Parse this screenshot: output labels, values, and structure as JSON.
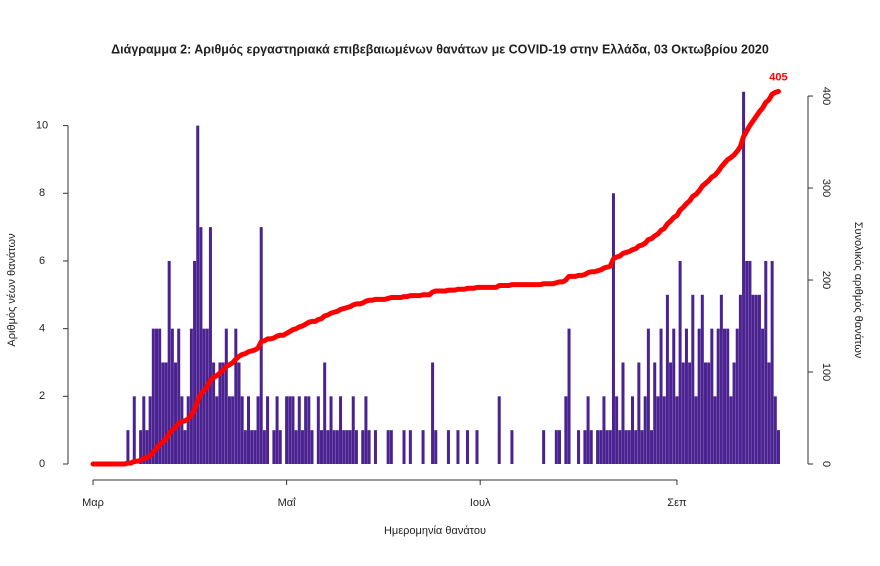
{
  "chart_data": {
    "type": "bar",
    "title": "Διάγραμμα 2: Αριθμός εργαστηριακά επιβεβαιωμένων θανάτων με COVID-19 στην Ελλάδα, 03 Οκτωβρίου 2020",
    "x_label": "Ημερομηνία θανάτου",
    "y_label": "Αριθμός νέων θανάτων",
    "y2_label": "Συνολικός αριθμός θανάτων",
    "x": [
      0,
      1,
      2,
      3,
      4,
      5,
      6,
      7,
      8,
      9,
      10,
      11,
      12,
      13,
      14,
      15,
      16,
      17,
      18,
      19,
      20,
      21,
      22,
      23,
      24,
      25,
      26,
      27,
      28,
      29,
      30,
      31,
      32,
      33,
      34,
      35,
      36,
      37,
      38,
      39,
      40,
      41,
      42,
      43,
      44,
      45,
      46,
      47,
      48,
      49,
      50,
      51,
      52,
      53,
      54,
      55,
      56,
      57,
      58,
      59,
      60,
      61,
      62,
      63,
      64,
      65,
      66,
      67,
      68,
      69,
      70,
      71,
      72,
      73,
      74,
      75,
      76,
      77,
      78,
      79,
      80,
      81,
      82,
      83,
      84,
      85,
      86,
      87,
      88,
      89,
      90,
      91,
      92,
      93,
      94,
      95,
      96,
      97,
      98,
      99,
      100,
      101,
      102,
      103,
      104,
      105,
      106,
      107,
      108,
      109,
      110,
      111,
      112,
      113,
      114,
      115,
      116,
      117,
      118,
      119,
      120,
      121,
      122,
      123,
      124,
      125,
      126,
      127,
      128,
      129,
      130,
      131,
      132,
      133,
      134,
      135,
      136,
      137,
      138,
      139,
      140,
      141,
      142,
      143,
      144,
      145,
      146,
      147,
      148,
      149,
      150,
      151,
      152,
      153,
      154,
      155,
      156,
      157,
      158,
      159,
      160,
      161,
      162,
      163,
      164,
      165,
      166,
      167,
      168,
      169,
      170,
      171,
      172,
      173,
      174,
      175,
      176,
      177,
      178,
      179,
      180,
      181,
      182,
      183,
      184,
      185,
      186,
      187,
      188,
      189,
      190,
      191,
      192,
      193,
      194,
      195,
      196,
      197,
      198,
      199,
      200,
      201,
      202,
      203,
      204,
      205,
      206,
      207,
      208,
      209,
      210,
      211,
      212,
      213,
      214,
      215,
      216
    ],
    "series": [
      {
        "type": "bar",
        "color": "#4b2391",
        "values": [
          0,
          0,
          0,
          0,
          0,
          0,
          0,
          0,
          0,
          0,
          0,
          1,
          0,
          2,
          0,
          1,
          2,
          1,
          2,
          4,
          4,
          4,
          3,
          3,
          6,
          4,
          3,
          4,
          2,
          1,
          2,
          4,
          6,
          10,
          7,
          4,
          4,
          7,
          3,
          2,
          3,
          3,
          4,
          2,
          2,
          4,
          3,
          2,
          1,
          2,
          1,
          1,
          2,
          7,
          1,
          2,
          0,
          1,
          2,
          1,
          0,
          2,
          2,
          2,
          1,
          2,
          1,
          2,
          2,
          1,
          0,
          2,
          1,
          3,
          1,
          2,
          1,
          1,
          2,
          1,
          1,
          1,
          2,
          1,
          0,
          1,
          2,
          1,
          0,
          1,
          0,
          0,
          0,
          1,
          1,
          0,
          0,
          0,
          1,
          0,
          1,
          0,
          0,
          0,
          1,
          0,
          0,
          3,
          1,
          0,
          0,
          0,
          1,
          0,
          0,
          1,
          0,
          0,
          1,
          0,
          0,
          1,
          0,
          0,
          0,
          0,
          0,
          0,
          2,
          0,
          0,
          0,
          1,
          0,
          0,
          0,
          0,
          0,
          0,
          0,
          0,
          0,
          1,
          0,
          0,
          0,
          1,
          1,
          0,
          2,
          4,
          0,
          0,
          1,
          0,
          1,
          2,
          1,
          0,
          1,
          1,
          2,
          1,
          1,
          8,
          2,
          1,
          3,
          1,
          1,
          2,
          1,
          3,
          1,
          2,
          4,
          1,
          3,
          2,
          4,
          2,
          5,
          3,
          4,
          2,
          6,
          3,
          4,
          3,
          5,
          2,
          4,
          5,
          3,
          3,
          4,
          2,
          4,
          5,
          4,
          4,
          2,
          3,
          4,
          5,
          11,
          6,
          6,
          5,
          5,
          5,
          4,
          6,
          3,
          6,
          2,
          1
        ]
      },
      {
        "type": "line",
        "axis": "y2",
        "color": "#ff0000",
        "values": [
          0,
          0,
          0,
          0,
          0,
          0,
          0,
          0,
          0,
          0,
          0,
          1,
          1,
          3,
          3,
          4,
          6,
          7,
          9,
          13,
          17,
          21,
          24,
          27,
          33,
          37,
          40,
          44,
          46,
          47,
          49,
          53,
          59,
          69,
          76,
          80,
          84,
          91,
          94,
          96,
          99,
          102,
          106,
          108,
          110,
          114,
          117,
          119,
          120,
          122,
          123,
          124,
          126,
          133,
          134,
          136,
          136,
          137,
          139,
          140,
          140,
          142,
          144,
          146,
          147,
          149,
          150,
          152,
          154,
          155,
          155,
          157,
          158,
          161,
          162,
          164,
          165,
          166,
          168,
          169,
          170,
          171,
          173,
          174,
          174,
          175,
          177,
          178,
          178,
          179,
          179,
          179,
          179,
          180,
          181,
          181,
          181,
          181,
          182,
          182,
          183,
          183,
          183,
          183,
          184,
          184,
          184,
          187,
          188,
          188,
          188,
          188,
          189,
          189,
          189,
          190,
          190,
          190,
          191,
          191,
          191,
          192,
          192,
          192,
          192,
          192,
          192,
          192,
          194,
          194,
          194,
          194,
          195,
          195,
          195,
          195,
          195,
          195,
          195,
          195,
          195,
          195,
          196,
          196,
          196,
          196,
          197,
          198,
          198,
          200,
          204,
          204,
          204,
          205,
          205,
          206,
          208,
          209,
          209,
          210,
          211,
          213,
          214,
          215,
          223,
          225,
          226,
          229,
          230,
          231,
          233,
          234,
          237,
          238,
          240,
          244,
          245,
          248,
          250,
          254,
          256,
          261,
          264,
          268,
          270,
          276,
          279,
          283,
          286,
          291,
          293,
          297,
          302,
          305,
          308,
          312,
          314,
          318,
          323,
          327,
          331,
          333,
          336,
          340,
          345,
          356,
          362,
          368,
          373,
          378,
          383,
          387,
          393,
          396,
          402,
          404,
          405
        ]
      }
    ],
    "annotations": [
      {
        "text": "405",
        "x": 216,
        "y": 405,
        "axis": "y2",
        "color": "#ff0000"
      }
    ],
    "xlim": [
      -3,
      219
    ],
    "xticks": [
      {
        "value": 0,
        "label": "Μαρ"
      },
      {
        "value": 61,
        "label": "Μαΐ"
      },
      {
        "value": 122,
        "label": "Ιουλ"
      },
      {
        "value": 184,
        "label": "Σεπ"
      }
    ],
    "ylim": [
      0,
      11.2
    ],
    "yticks": [
      0,
      2,
      4,
      6,
      8,
      10
    ],
    "y2lim": [
      0,
      412
    ],
    "y2ticks": [
      0,
      100,
      200,
      300,
      400
    ]
  }
}
